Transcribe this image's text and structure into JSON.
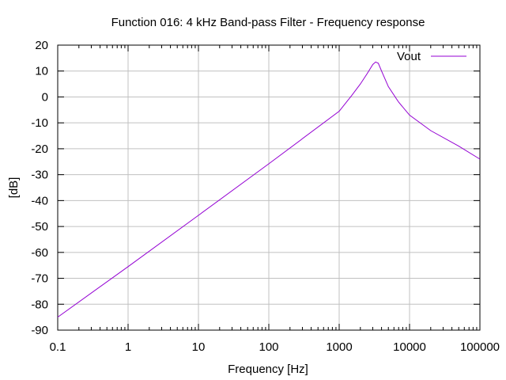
{
  "chart_data": {
    "type": "line",
    "title": "Function 016: 4 kHz Band-pass Filter - Frequency response",
    "xlabel": "Frequency [Hz]",
    "ylabel": "[dB]",
    "x_scale": "log",
    "xlim": [
      0.1,
      100000
    ],
    "ylim": [
      -90,
      20
    ],
    "x_ticks": [
      "0.1",
      "1",
      "10",
      "100",
      "1000",
      "10000",
      "100000"
    ],
    "y_ticks": [
      "20",
      "10",
      "0",
      "-10",
      "-20",
      "-30",
      "-40",
      "-50",
      "-60",
      "-70",
      "-80",
      "-90"
    ],
    "grid": true,
    "legend_position": "top-right",
    "colors": {
      "Vout": "#9400d3"
    },
    "series": [
      {
        "name": "Vout",
        "x": [
          0.1,
          1,
          10,
          100,
          1000,
          1500,
          2000,
          2500,
          3000,
          3300,
          3600,
          4000,
          5000,
          7000,
          10000,
          20000,
          50000,
          100000
        ],
        "y": [
          -85,
          -65.5,
          -45.7,
          -25.8,
          -5.5,
          0.5,
          5,
          9,
          12.5,
          13.5,
          13,
          10,
          4,
          -2,
          -7,
          -13,
          -19,
          -24
        ]
      }
    ]
  }
}
